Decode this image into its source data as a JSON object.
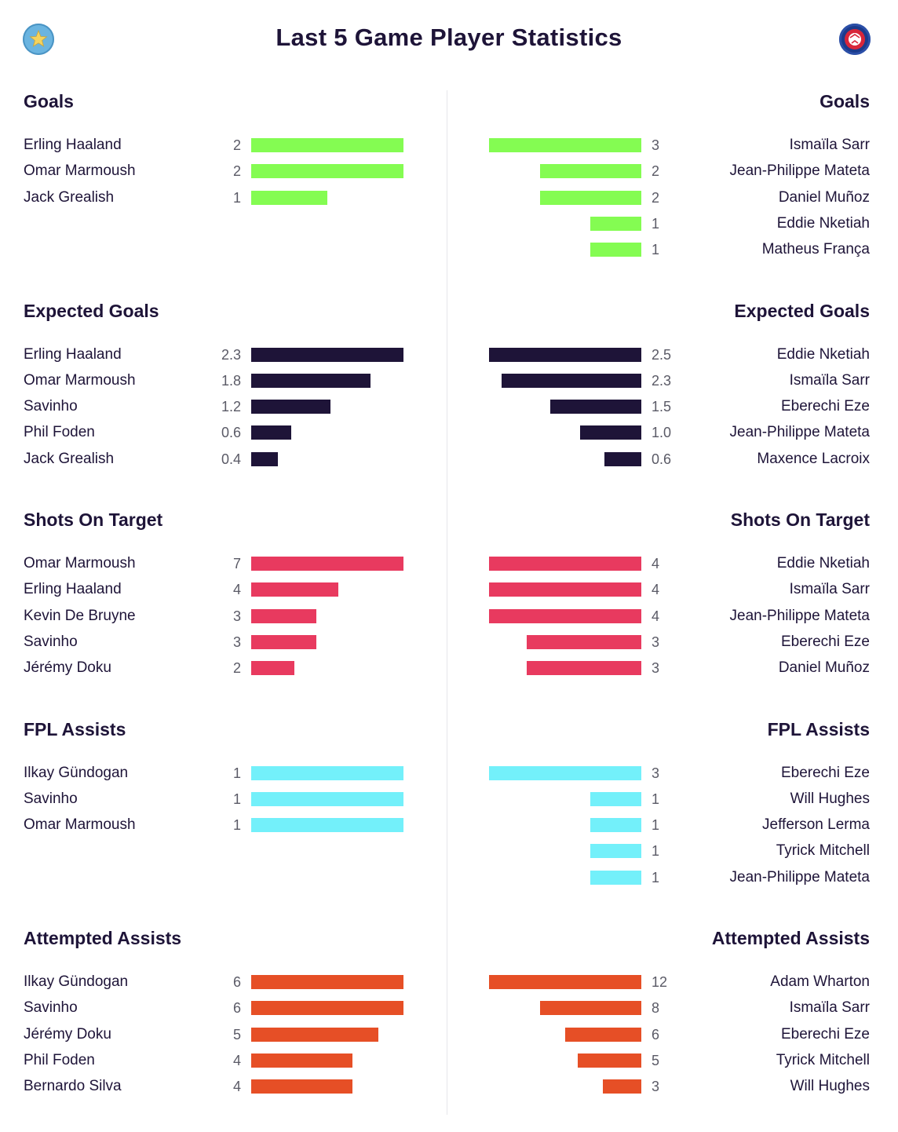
{
  "title": "Last 5 Game Player Statistics",
  "home_team": {
    "badge_icon": "star-icon",
    "color": "#6ab4e0"
  },
  "away_team": {
    "badge_icon": "ball-icon",
    "color": "#1b3b8c"
  },
  "chart_data": {
    "type": "bar",
    "orientation": "horizontal-mirrored",
    "sections": [
      {
        "title": "Goals",
        "color": "#84fc52",
        "home": [
          {
            "name": "Erling Haaland",
            "value": 2,
            "label": "2"
          },
          {
            "name": "Omar Marmoush",
            "value": 2,
            "label": "2"
          },
          {
            "name": "Jack Grealish",
            "value": 1,
            "label": "1"
          }
        ],
        "away": [
          {
            "name": "Ismaïla Sarr",
            "value": 3,
            "label": "3"
          },
          {
            "name": "Jean-Philippe Mateta",
            "value": 2,
            "label": "2"
          },
          {
            "name": "Daniel Muñoz",
            "value": 2,
            "label": "2"
          },
          {
            "name": "Eddie Nketiah",
            "value": 1,
            "label": "1"
          },
          {
            "name": "Matheus França",
            "value": 1,
            "label": "1"
          }
        ]
      },
      {
        "title": "Expected Goals",
        "color": "#1e1438",
        "home": [
          {
            "name": "Erling Haaland",
            "value": 2.3,
            "label": "2.3"
          },
          {
            "name": "Omar Marmoush",
            "value": 1.8,
            "label": "1.8"
          },
          {
            "name": "Savinho",
            "value": 1.2,
            "label": "1.2"
          },
          {
            "name": "Phil Foden",
            "value": 0.6,
            "label": "0.6"
          },
          {
            "name": "Jack Grealish",
            "value": 0.4,
            "label": "0.4"
          }
        ],
        "away": [
          {
            "name": "Eddie Nketiah",
            "value": 2.5,
            "label": "2.5"
          },
          {
            "name": "Ismaïla Sarr",
            "value": 2.3,
            "label": "2.3"
          },
          {
            "name": "Eberechi Eze",
            "value": 1.5,
            "label": "1.5"
          },
          {
            "name": "Jean-Philippe Mateta",
            "value": 1.0,
            "label": "1.0"
          },
          {
            "name": "Maxence Lacroix",
            "value": 0.6,
            "label": "0.6"
          }
        ]
      },
      {
        "title": "Shots On Target",
        "color": "#e83a5f",
        "home": [
          {
            "name": "Omar Marmoush",
            "value": 7,
            "label": "7"
          },
          {
            "name": "Erling Haaland",
            "value": 4,
            "label": "4"
          },
          {
            "name": "Kevin De Bruyne",
            "value": 3,
            "label": "3"
          },
          {
            "name": "Savinho",
            "value": 3,
            "label": "3"
          },
          {
            "name": "Jérémy Doku",
            "value": 2,
            "label": "2"
          }
        ],
        "away": [
          {
            "name": "Eddie Nketiah",
            "value": 4,
            "label": "4"
          },
          {
            "name": "Ismaïla Sarr",
            "value": 4,
            "label": "4"
          },
          {
            "name": "Jean-Philippe Mateta",
            "value": 4,
            "label": "4"
          },
          {
            "name": "Eberechi Eze",
            "value": 3,
            "label": "3"
          },
          {
            "name": "Daniel Muñoz",
            "value": 3,
            "label": "3"
          }
        ]
      },
      {
        "title": "FPL Assists",
        "color": "#73f0fa",
        "home": [
          {
            "name": "Ilkay Gündogan",
            "value": 1,
            "label": "1"
          },
          {
            "name": "Savinho",
            "value": 1,
            "label": "1"
          },
          {
            "name": "Omar Marmoush",
            "value": 1,
            "label": "1"
          }
        ],
        "away": [
          {
            "name": "Eberechi Eze",
            "value": 3,
            "label": "3"
          },
          {
            "name": "Will Hughes",
            "value": 1,
            "label": "1"
          },
          {
            "name": "Jefferson Lerma",
            "value": 1,
            "label": "1"
          },
          {
            "name": "Tyrick Mitchell",
            "value": 1,
            "label": "1"
          },
          {
            "name": "Jean-Philippe Mateta",
            "value": 1,
            "label": "1"
          }
        ]
      },
      {
        "title": "Attempted Assists",
        "color": "#e64f26",
        "home": [
          {
            "name": "Ilkay Gündogan",
            "value": 6,
            "label": "6"
          },
          {
            "name": "Savinho",
            "value": 6,
            "label": "6"
          },
          {
            "name": "Jérémy Doku",
            "value": 5,
            "label": "5"
          },
          {
            "name": "Phil Foden",
            "value": 4,
            "label": "4"
          },
          {
            "name": "Bernardo Silva",
            "value": 4,
            "label": "4"
          }
        ],
        "away": [
          {
            "name": "Adam Wharton",
            "value": 12,
            "label": "12"
          },
          {
            "name": "Ismaïla Sarr",
            "value": 8,
            "label": "8"
          },
          {
            "name": "Eberechi Eze",
            "value": 6,
            "label": "6"
          },
          {
            "name": "Tyrick Mitchell",
            "value": 5,
            "label": "5"
          },
          {
            "name": "Will Hughes",
            "value": 3,
            "label": "3"
          }
        ]
      }
    ]
  }
}
